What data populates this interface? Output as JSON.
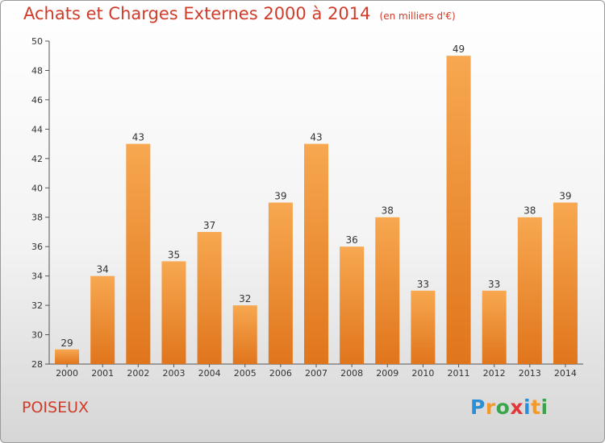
{
  "title": "Achats et Charges Externes 2000 à 2014",
  "unit": "(en milliers d'€)",
  "town": "POISEUX",
  "logo": {
    "text": "Proxiti",
    "letters": [
      {
        "ch": "P",
        "color": "#2b8fd8"
      },
      {
        "ch": "r",
        "color": "#f29b2a"
      },
      {
        "ch": "o",
        "color": "#3aa64b"
      },
      {
        "ch": "x",
        "color": "#e2383a"
      },
      {
        "ch": "i",
        "color": "#2b8fd8"
      },
      {
        "ch": "t",
        "color": "#f29b2a"
      },
      {
        "ch": "i",
        "color": "#3aa64b"
      }
    ]
  },
  "colors": {
    "bar_light": "#f7a850",
    "bar_dark": "#e0751c",
    "title": "#d03c2a"
  },
  "chart_data": {
    "type": "bar",
    "categories": [
      "2000",
      "2001",
      "2002",
      "2003",
      "2004",
      "2005",
      "2006",
      "2007",
      "2008",
      "2009",
      "2010",
      "2011",
      "2012",
      "2013",
      "2014"
    ],
    "values": [
      29,
      34,
      43,
      35,
      37,
      32,
      39,
      43,
      36,
      38,
      33,
      49,
      33,
      38,
      39
    ],
    "title": "Achats et Charges Externes 2000 à 2014",
    "xlabel": "",
    "ylabel": "",
    "ylim": [
      28,
      50
    ],
    "yticks": [
      28,
      30,
      32,
      34,
      36,
      38,
      40,
      42,
      44,
      46,
      48,
      50
    ],
    "grid": false,
    "legend": "none"
  }
}
